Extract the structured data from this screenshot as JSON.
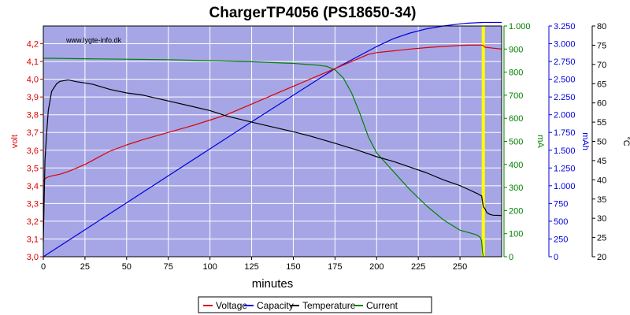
{
  "chart_data": {
    "type": "line",
    "title": "ChargerTP4056 (PS18650-34)",
    "xlabel": "minutes",
    "watermark": "www.lygte-info.dk",
    "x_axis": {
      "min": 0,
      "max": 275,
      "ticks": [
        0,
        25,
        50,
        75,
        100,
        125,
        150,
        175,
        200,
        225,
        250
      ],
      "tick_labels": [
        "0",
        "25",
        "50",
        "75",
        "100",
        "125",
        "150",
        "175",
        "200",
        "225",
        "250"
      ]
    },
    "axes": [
      {
        "id": "volt",
        "label": "volt",
        "color": "#dd0000",
        "min": 3.0,
        "max": 4.3,
        "ticks": [
          3.0,
          3.1,
          3.2,
          3.3,
          3.4,
          3.5,
          3.6,
          3.7,
          3.8,
          3.9,
          4.0,
          4.1,
          4.2
        ],
        "tick_labels": [
          "3,0",
          "3,1",
          "3,2",
          "3,3",
          "3,4",
          "3,5",
          "3,6",
          "3,7",
          "3,8",
          "3,9",
          "4,0",
          "4,1",
          "4,2"
        ]
      },
      {
        "id": "ma",
        "label": "mA",
        "color": "#008000",
        "min": 0,
        "max": 1000,
        "ticks": [
          0,
          100,
          200,
          300,
          400,
          500,
          600,
          700,
          800,
          900,
          1000
        ],
        "tick_labels": [
          "0",
          "100",
          "200",
          "300",
          "400",
          "500",
          "600",
          "700",
          "800",
          "900",
          "1.000"
        ]
      },
      {
        "id": "mah",
        "label": "mAh",
        "color": "#0000dd",
        "min": 0,
        "max": 3250,
        "ticks": [
          0,
          250,
          500,
          750,
          1000,
          1250,
          1500,
          1750,
          2000,
          2250,
          2500,
          2750,
          3000,
          3250
        ],
        "tick_labels": [
          "0",
          "250",
          "500",
          "750",
          "1.000",
          "1.250",
          "1.500",
          "1.750",
          "2.000",
          "2.250",
          "2.500",
          "2.750",
          "3.000",
          "3.250"
        ]
      },
      {
        "id": "temp",
        "label": "°C",
        "color": "#000000",
        "min": 20,
        "max": 80,
        "ticks": [
          20,
          25,
          30,
          35,
          40,
          45,
          50,
          55,
          60,
          65,
          70,
          75,
          80
        ],
        "tick_labels": [
          "20",
          "25",
          "30",
          "35",
          "40",
          "45",
          "50",
          "55",
          "60",
          "65",
          "70",
          "75",
          "80"
        ]
      }
    ],
    "marker": {
      "x": 264,
      "color": "#ffff00"
    },
    "series": [
      {
        "name": "Voltage",
        "axis": "volt",
        "color": "#dd0000",
        "x": [
          0,
          1,
          3,
          5,
          10,
          15,
          20,
          25,
          30,
          35,
          40,
          50,
          60,
          75,
          90,
          100,
          110,
          125,
          140,
          150,
          160,
          170,
          180,
          190,
          195,
          200,
          210,
          220,
          230,
          240,
          250,
          255,
          260,
          263,
          264,
          265,
          270,
          275
        ],
        "y": [
          3.42,
          3.44,
          3.45,
          3.455,
          3.465,
          3.48,
          3.5,
          3.52,
          3.545,
          3.57,
          3.595,
          3.63,
          3.66,
          3.7,
          3.74,
          3.77,
          3.8,
          3.86,
          3.92,
          3.96,
          4.0,
          4.04,
          4.08,
          4.12,
          4.14,
          4.15,
          4.16,
          4.17,
          4.178,
          4.185,
          4.19,
          4.192,
          4.192,
          4.192,
          4.19,
          4.18,
          4.175,
          4.17
        ]
      },
      {
        "name": "Capacity",
        "axis": "mah",
        "color": "#0000dd",
        "x": [
          0,
          25,
          50,
          75,
          100,
          125,
          150,
          175,
          200,
          210,
          220,
          230,
          240,
          250,
          255,
          260,
          264,
          275
        ],
        "y": [
          0,
          380,
          760,
          1140,
          1520,
          1900,
          2275,
          2650,
          2960,
          3070,
          3150,
          3210,
          3250,
          3280,
          3290,
          3295,
          3300,
          3300
        ]
      },
      {
        "name": "Temperature",
        "axis": "temp",
        "color": "#000000",
        "x": [
          0,
          0.5,
          1,
          2,
          3,
          5,
          8,
          10,
          15,
          20,
          25,
          30,
          40,
          50,
          60,
          75,
          90,
          100,
          110,
          125,
          140,
          150,
          160,
          175,
          190,
          200,
          210,
          220,
          230,
          240,
          250,
          255,
          260,
          263,
          264,
          265,
          266,
          268,
          270,
          275
        ],
        "y": [
          24,
          35,
          45,
          52,
          58,
          63,
          65,
          65.6,
          66,
          65.5,
          65.2,
          64.8,
          63.5,
          62.6,
          62,
          60.5,
          59,
          58,
          56.6,
          55,
          53.5,
          52.5,
          51.4,
          49.5,
          47.5,
          46,
          44.8,
          43.3,
          41.8,
          40,
          38.5,
          37.5,
          36.5,
          35.8,
          33,
          32.5,
          31.5,
          31,
          30.8,
          30.7
        ]
      },
      {
        "name": "Current",
        "axis": "ma",
        "color": "#008000",
        "x": [
          0,
          1,
          3,
          25,
          50,
          75,
          100,
          125,
          150,
          165,
          170,
          175,
          180,
          185,
          190,
          195,
          200,
          210,
          220,
          230,
          240,
          250,
          255,
          260,
          262,
          263,
          263.5,
          264
        ],
        "y": [
          860,
          860,
          860,
          858,
          856,
          854,
          850,
          845,
          838,
          830,
          825,
          810,
          775,
          710,
          620,
          520,
          450,
          370,
          290,
          220,
          160,
          115,
          105,
          95,
          85,
          70,
          20,
          0
        ]
      }
    ],
    "legend": {
      "placement": "bottom-center",
      "entries": [
        "Voltage",
        "Capacity",
        "Temperature",
        "Current"
      ]
    },
    "grid": true
  }
}
